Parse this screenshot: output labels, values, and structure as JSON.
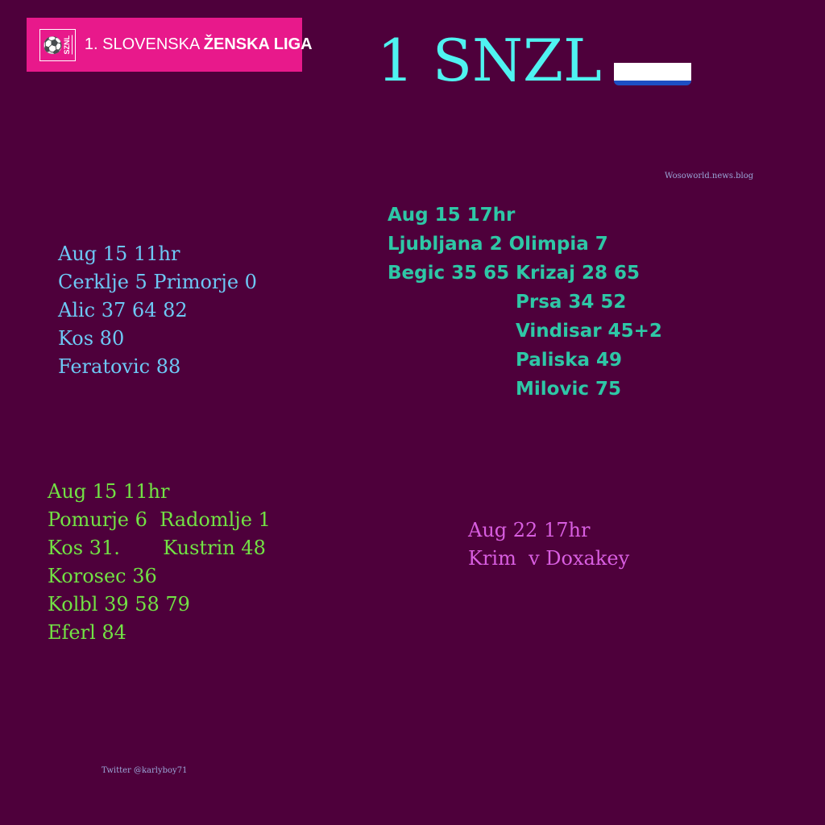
{
  "logo": {
    "badge": "SZNL",
    "text_light": "1. SLOVENSKA ",
    "text_bold": "ŽENSKA LIGA",
    "color": "#e8198b"
  },
  "header": {
    "title": "1 SNZL",
    "flag": "slovenia-flag-icon"
  },
  "credits": {
    "site": "Wosoworld.news.blog",
    "twitter": "Twitter @karlyboy71"
  },
  "matches": [
    {
      "lines": [
        "Aug 15 11hr",
        "Cerklje 5 Primorje 0",
        "Alic 37 64 82",
        "Kos 80",
        "Feratovic 88"
      ],
      "color": "#6dc8f5"
    },
    {
      "lines": [
        "Aug 15 17hr",
        "Ljubljana 2 Olimpia 7",
        "Begic 35 65 Krizaj 28 65",
        "Prsa 34 52",
        "Vindisar 45+2",
        "Paliska 49",
        "Milovic 75"
      ],
      "color": "#2ec7a6"
    },
    {
      "lines": [
        "Aug 15 11hr",
        "Pomurje 6  Radomlje 1",
        "Kos 31.       Kustrin 48",
        "Korosec 36",
        "Kolbl 39 58 79",
        "Eferl 84"
      ],
      "color": "#72e244"
    },
    {
      "lines": [
        "Aug 22 17hr",
        "Krim  v Doxakey"
      ],
      "color": "#d85ee0"
    }
  ]
}
